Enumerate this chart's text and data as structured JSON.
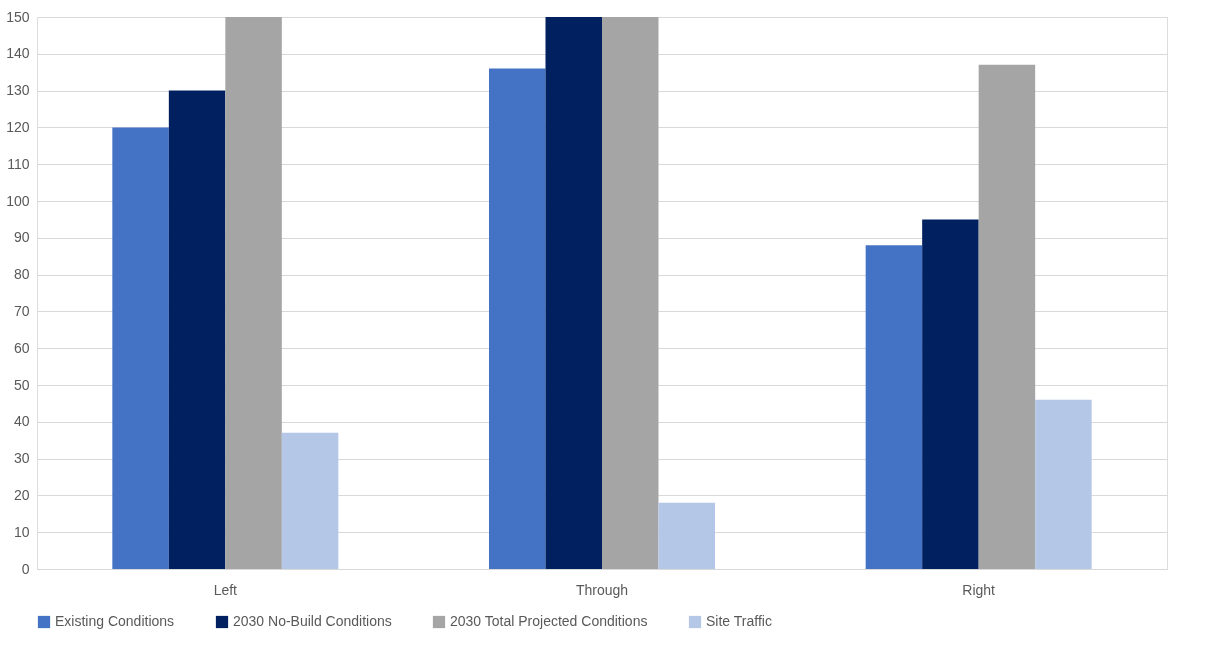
{
  "chart_data": {
    "type": "bar",
    "categories": [
      "Left",
      "Through",
      "Right"
    ],
    "series": [
      {
        "name": "Existing Conditions",
        "color": "#4472c4",
        "values": [
          120,
          136,
          88
        ]
      },
      {
        "name": "2030 No-Build Conditions",
        "color": "#002060",
        "values": [
          130,
          150,
          95
        ]
      },
      {
        "name": "2030 Total Projected Conditions",
        "color": "#a5a5a5",
        "values": [
          150,
          150,
          137
        ]
      },
      {
        "name": "Site Traffic",
        "color": "#b4c7e7",
        "values": [
          37,
          18,
          46
        ]
      }
    ],
    "ylim": [
      0,
      150
    ],
    "yticks": [
      0,
      10,
      20,
      30,
      40,
      50,
      60,
      70,
      80,
      90,
      100,
      110,
      120,
      130,
      140,
      150
    ],
    "grid": "y",
    "legend": "bottom"
  }
}
